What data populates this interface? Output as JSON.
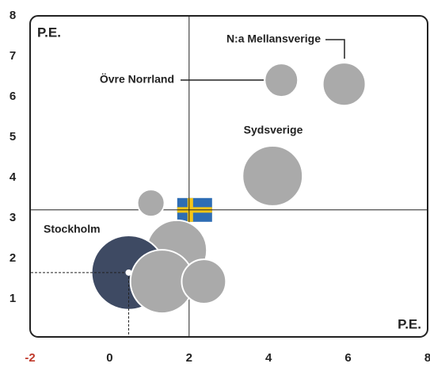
{
  "chart_data": {
    "type": "bubble",
    "corner_labels": [
      "P.E.",
      "P.E."
    ],
    "xlim": [
      -2,
      8
    ],
    "xticks": [
      -2,
      0,
      2,
      4,
      6,
      8
    ],
    "xtick_colors": [
      "#c0392b",
      "#222222",
      "#222222",
      "#222222",
      "#222222",
      "#222222"
    ],
    "ylim": [
      0,
      8
    ],
    "yticks": [
      1,
      2,
      3,
      4,
      5,
      6,
      7,
      8
    ],
    "reference_x": 2,
    "reference_y": 3.2,
    "points": [
      {
        "x": 1.69,
        "y": 2.2,
        "size": 14.4,
        "color": "#aaaaaa"
      },
      {
        "x": 0.48,
        "y": 1.65,
        "size": 22,
        "color": "#3e4a63"
      },
      {
        "x": 1.32,
        "y": 1.43,
        "size": 16,
        "color": "#aaaaaa"
      },
      {
        "x": 2.37,
        "y": 1.43,
        "size": 7.8,
        "color": "#aaaaaa"
      },
      {
        "x": 1.04,
        "y": 3.37,
        "size": 2.9,
        "color": "#aaaaaa"
      },
      {
        "x": 4.1,
        "y": 4.04,
        "size": 14.4,
        "color": "#aaaaaa"
      },
      {
        "x": 4.32,
        "y": 6.41,
        "size": 4.4,
        "color": "#aaaaaa"
      },
      {
        "x": 5.9,
        "y": 6.31,
        "size": 7.3,
        "color": "#aaaaaa"
      }
    ],
    "annotations": [
      "N:a Mellansverige",
      "Övre Norrland",
      "Sydsverige",
      "Stockholm"
    ]
  }
}
